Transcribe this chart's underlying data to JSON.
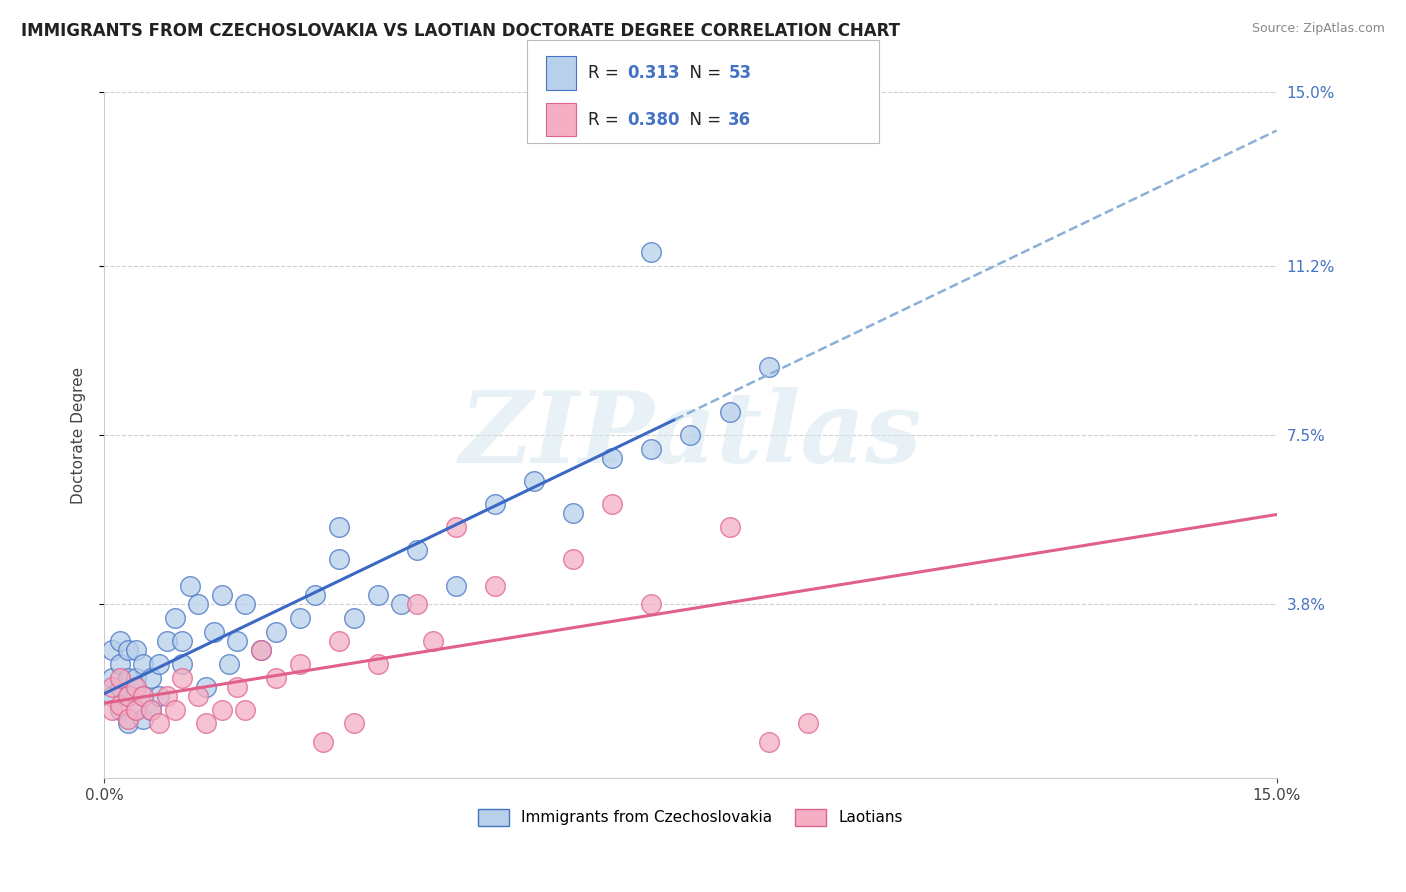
{
  "title": "IMMIGRANTS FROM CZECHOSLOVAKIA VS LAOTIAN DOCTORATE DEGREE CORRELATION CHART",
  "source": "Source: ZipAtlas.com",
  "ylabel": "Doctorate Degree",
  "xlim": [
    0.0,
    0.15
  ],
  "ylim": [
    0.0,
    0.15
  ],
  "ytick_positions": [
    0.038,
    0.075,
    0.112,
    0.15
  ],
  "ytick_labels": [
    "3.8%",
    "7.5%",
    "11.2%",
    "15.0%"
  ],
  "xtick_positions": [
    0.0,
    0.15
  ],
  "xtick_labels": [
    "0.0%",
    "15.0%"
  ],
  "series1_face_color": "#b8d0ea",
  "series1_edge_color": "#4472c4",
  "series2_face_color": "#f4afc4",
  "series2_edge_color": "#e06090",
  "trendline1_color": "#3a68c4",
  "trendline2_color": "#e0608a",
  "trendline_dash_color": "#8ab0d8",
  "R1": 0.313,
  "N1": 53,
  "R2": 0.38,
  "N2": 36,
  "legend_label1": "Immigrants from Czechoslovakia",
  "legend_label2": "Laotians",
  "watermark_text": "ZIPatlas",
  "grid_color": "#d0d0d0",
  "series1_x": [
    0.001,
    0.001,
    0.001,
    0.002,
    0.002,
    0.002,
    0.002,
    0.003,
    0.003,
    0.003,
    0.003,
    0.004,
    0.004,
    0.004,
    0.005,
    0.005,
    0.005,
    0.006,
    0.006,
    0.007,
    0.007,
    0.008,
    0.009,
    0.01,
    0.01,
    0.011,
    0.012,
    0.013,
    0.014,
    0.015,
    0.016,
    0.017,
    0.018,
    0.02,
    0.022,
    0.025,
    0.027,
    0.03,
    0.03,
    0.032,
    0.035,
    0.038,
    0.04,
    0.045,
    0.05,
    0.055,
    0.06,
    0.065,
    0.07,
    0.075,
    0.08,
    0.085,
    0.07
  ],
  "series1_y": [
    0.028,
    0.022,
    0.018,
    0.03,
    0.025,
    0.02,
    0.015,
    0.028,
    0.022,
    0.018,
    0.012,
    0.028,
    0.022,
    0.015,
    0.025,
    0.018,
    0.013,
    0.022,
    0.015,
    0.025,
    0.018,
    0.03,
    0.035,
    0.03,
    0.025,
    0.042,
    0.038,
    0.02,
    0.032,
    0.04,
    0.025,
    0.03,
    0.038,
    0.028,
    0.032,
    0.035,
    0.04,
    0.048,
    0.055,
    0.035,
    0.04,
    0.038,
    0.05,
    0.042,
    0.06,
    0.065,
    0.058,
    0.07,
    0.072,
    0.075,
    0.08,
    0.09,
    0.115
  ],
  "series2_x": [
    0.001,
    0.001,
    0.002,
    0.002,
    0.003,
    0.003,
    0.004,
    0.004,
    0.005,
    0.006,
    0.007,
    0.008,
    0.009,
    0.01,
    0.012,
    0.013,
    0.015,
    0.017,
    0.018,
    0.02,
    0.022,
    0.025,
    0.028,
    0.03,
    0.032,
    0.035,
    0.04,
    0.042,
    0.045,
    0.05,
    0.06,
    0.065,
    0.07,
    0.08,
    0.085,
    0.09
  ],
  "series2_y": [
    0.02,
    0.015,
    0.022,
    0.016,
    0.018,
    0.013,
    0.02,
    0.015,
    0.018,
    0.015,
    0.012,
    0.018,
    0.015,
    0.022,
    0.018,
    0.012,
    0.015,
    0.02,
    0.015,
    0.028,
    0.022,
    0.025,
    0.008,
    0.03,
    0.012,
    0.025,
    0.038,
    0.03,
    0.055,
    0.042,
    0.048,
    0.06,
    0.038,
    0.055,
    0.008,
    0.012
  ],
  "trendline1_x_solid_end": 0.073,
  "trendline1_intercept": 0.012,
  "trendline1_slope": 0.72,
  "trendline2_intercept": 0.01,
  "trendline2_slope": 0.38
}
